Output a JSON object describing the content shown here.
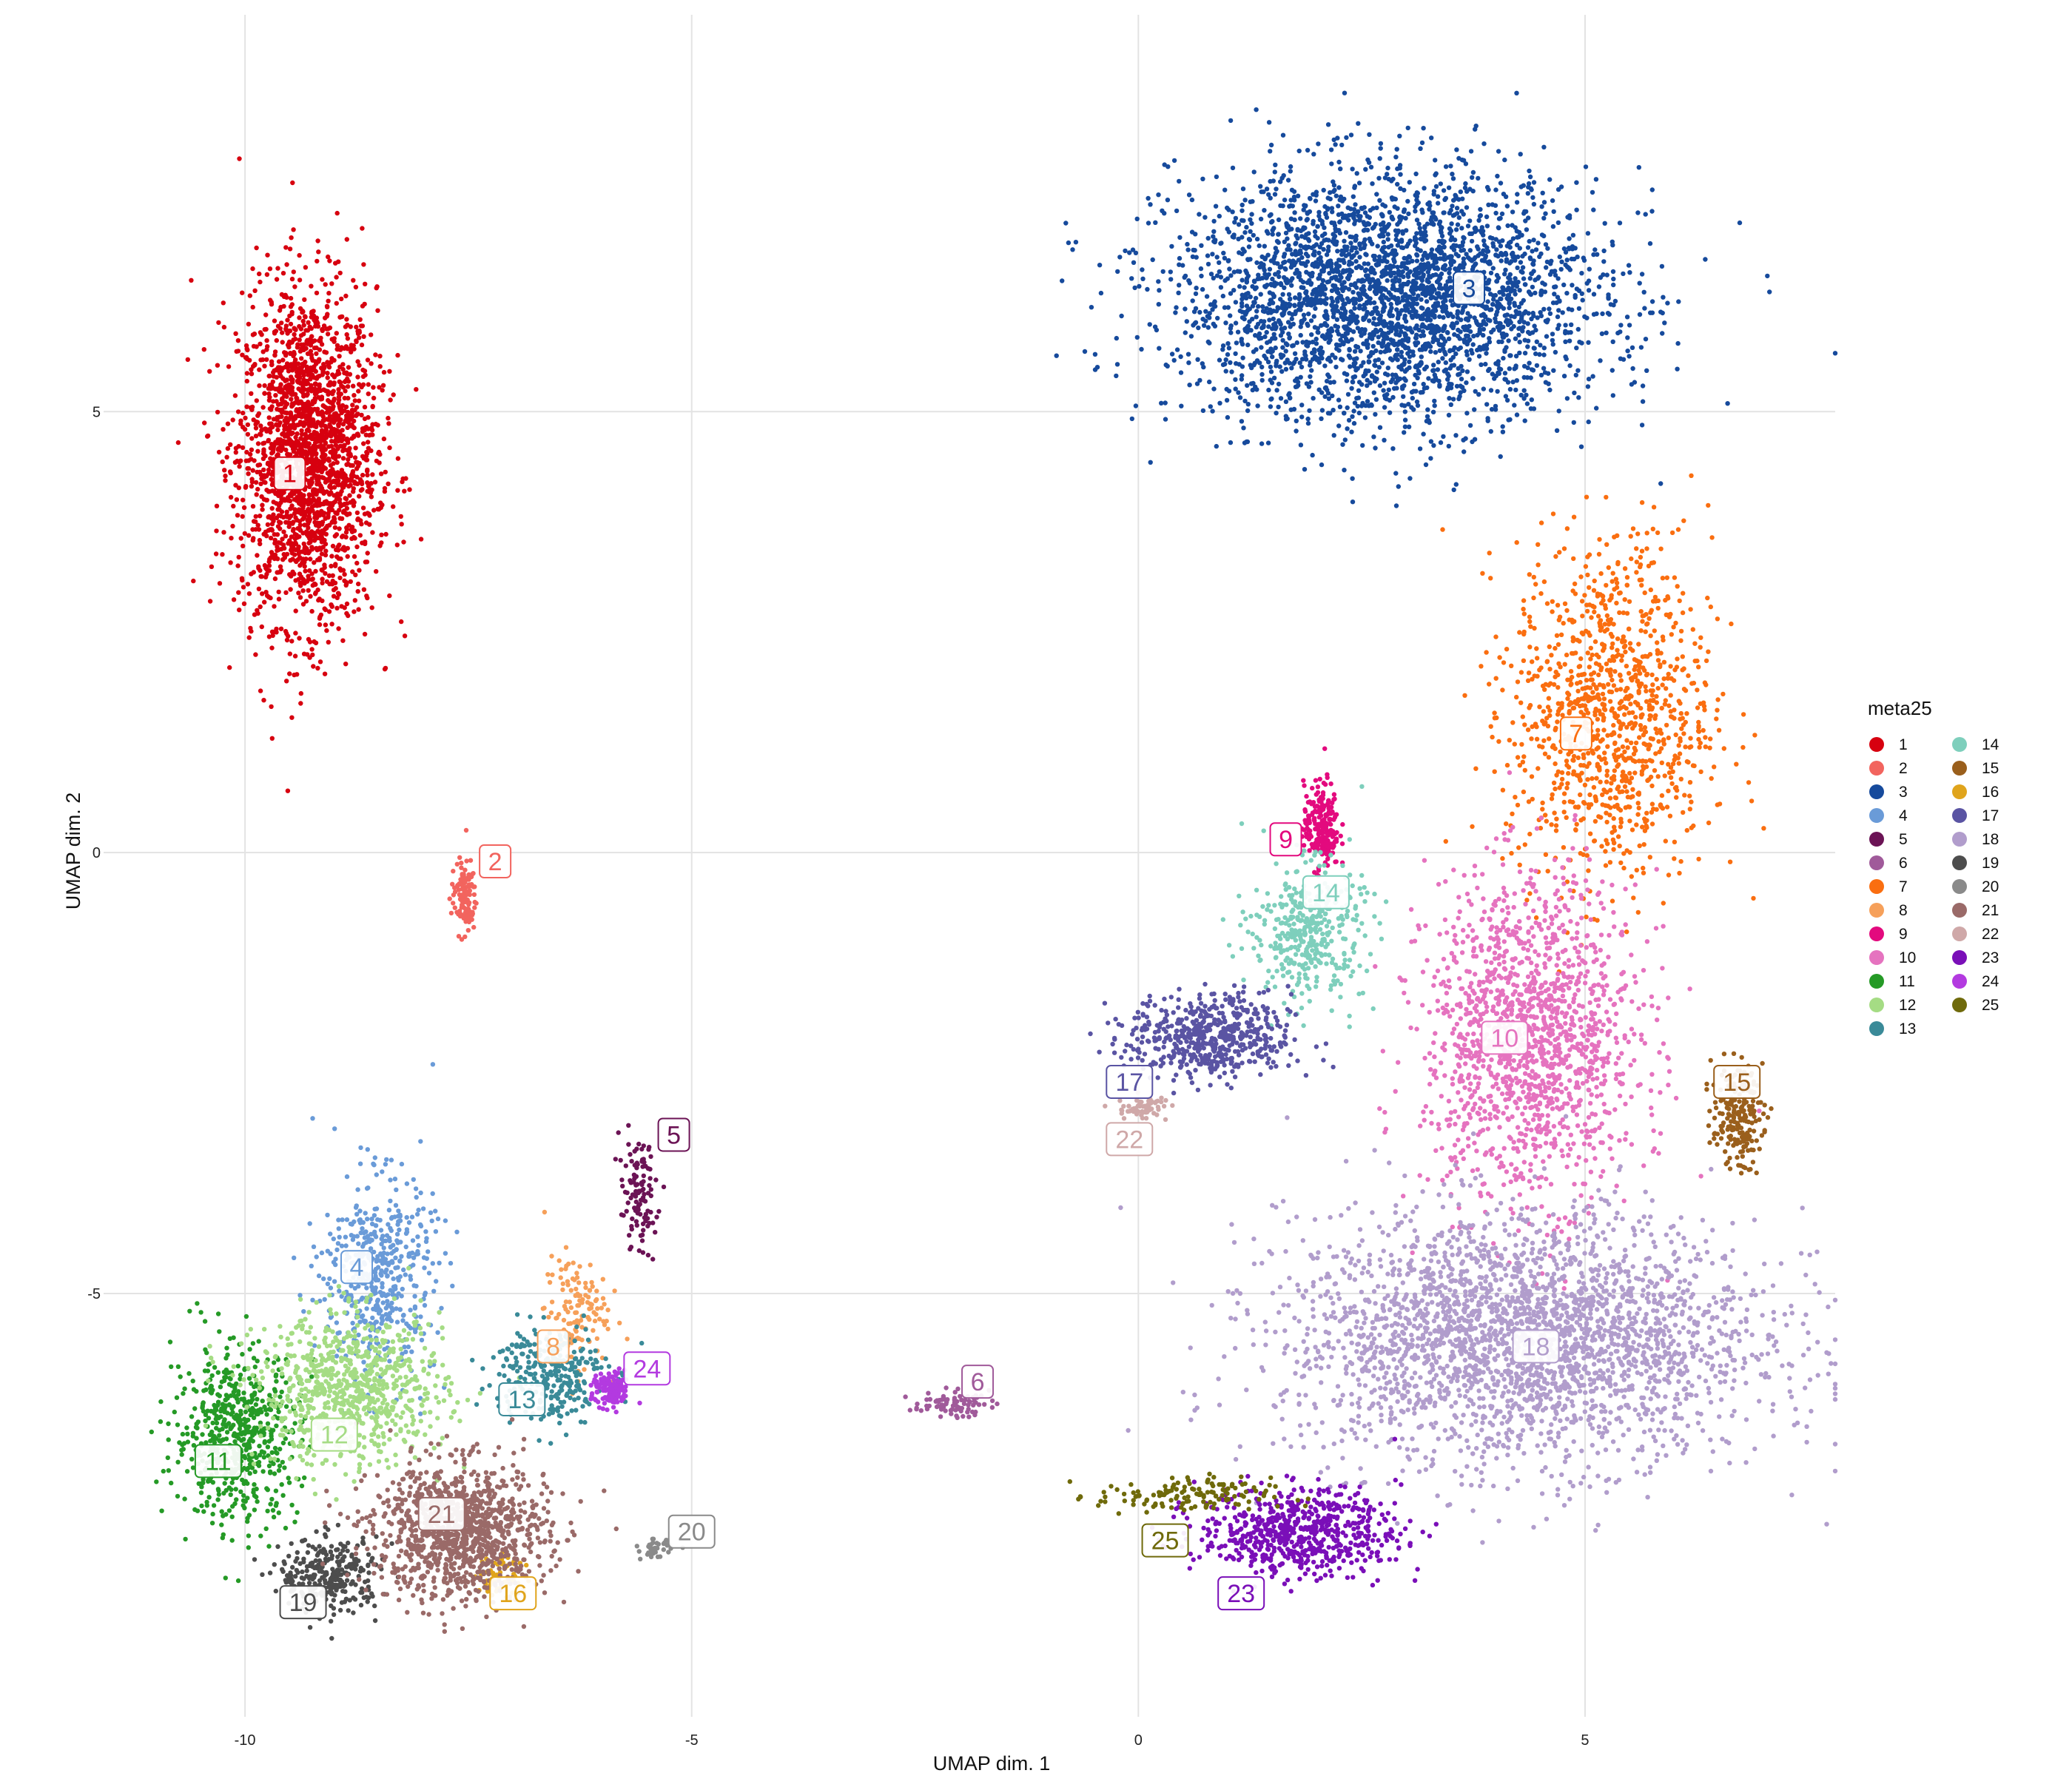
{
  "chart_data": {
    "type": "scatter",
    "xlabel": "UMAP dim. 1",
    "ylabel": "UMAP dim. 2",
    "xlim": [
      -11.5,
      7.8
    ],
    "ylim": [
      -9.8,
      9.5
    ],
    "xticks": [
      -10,
      -5,
      0,
      5
    ],
    "yticks": [
      -5,
      0,
      5
    ],
    "grid": true,
    "legend": {
      "title": "meta25",
      "position": "right"
    },
    "clusters": [
      {
        "id": "1",
        "label": "1",
        "color": "#D7000F",
        "label_x": -9.5,
        "label_y": 4.3,
        "center": [
          -9.3,
          4.5
        ],
        "spread": [
          0.55,
          1.35
        ],
        "n": 2200
      },
      {
        "id": "2",
        "label": "2",
        "color": "#F2645E",
        "label_x": -7.2,
        "label_y": -0.1,
        "center": [
          -7.55,
          -0.5
        ],
        "spread": [
          0.1,
          0.3
        ],
        "n": 120
      },
      {
        "id": "3",
        "label": "3",
        "color": "#164A9C",
        "label_x": 3.7,
        "label_y": 6.4,
        "center": [
          2.8,
          6.3
        ],
        "spread": [
          1.7,
          1.0
        ],
        "n": 3200
      },
      {
        "id": "4",
        "label": "4",
        "color": "#6A9BD8",
        "label_x": -8.75,
        "label_y": -4.7,
        "center": [
          -8.5,
          -4.8
        ],
        "spread": [
          0.45,
          0.8
        ],
        "n": 500
      },
      {
        "id": "5",
        "label": "5",
        "color": "#6B1355",
        "label_x": -5.2,
        "label_y": -3.2,
        "center": [
          -5.6,
          -3.9
        ],
        "spread": [
          0.15,
          0.45
        ],
        "n": 110
      },
      {
        "id": "6",
        "label": "6",
        "color": "#A05A9A",
        "label_x": -1.8,
        "label_y": -6.0,
        "center": [
          -2.1,
          -6.25
        ],
        "spread": [
          0.3,
          0.1
        ],
        "n": 80
      },
      {
        "id": "7",
        "label": "7",
        "color": "#FA6E10",
        "label_x": 4.9,
        "label_y": 1.35,
        "center": [
          5.3,
          1.6
        ],
        "spread": [
          0.8,
          1.4
        ],
        "n": 1100
      },
      {
        "id": "8",
        "label": "8",
        "color": "#F6A05A",
        "label_x": -6.55,
        "label_y": -5.6,
        "center": [
          -6.3,
          -5.2
        ],
        "spread": [
          0.25,
          0.45
        ],
        "n": 130
      },
      {
        "id": "9",
        "label": "9",
        "color": "#E30A7E",
        "label_x": 1.65,
        "label_y": 0.15,
        "center": [
          2.05,
          0.3
        ],
        "spread": [
          0.14,
          0.35
        ],
        "n": 220
      },
      {
        "id": "10",
        "label": "10",
        "color": "#E573BF",
        "label_x": 4.1,
        "label_y": -2.1,
        "center": [
          4.4,
          -2.1
        ],
        "spread": [
          0.85,
          1.3
        ],
        "n": 1500
      },
      {
        "id": "11",
        "label": "11",
        "color": "#259A26",
        "label_x": -10.3,
        "label_y": -6.9,
        "center": [
          -10.1,
          -6.6
        ],
        "spread": [
          0.5,
          0.7
        ],
        "n": 600
      },
      {
        "id": "12",
        "label": "12",
        "color": "#A5DC84",
        "label_x": -9.0,
        "label_y": -6.6,
        "center": [
          -8.8,
          -6.1
        ],
        "spread": [
          0.75,
          0.6
        ],
        "n": 800
      },
      {
        "id": "13",
        "label": "13",
        "color": "#3A8A98",
        "label_x": -6.9,
        "label_y": -6.2,
        "center": [
          -6.6,
          -5.9
        ],
        "spread": [
          0.45,
          0.4
        ],
        "n": 300
      },
      {
        "id": "14",
        "label": "14",
        "color": "#7ECFBC",
        "label_x": 2.1,
        "label_y": -0.45,
        "center": [
          1.9,
          -0.9
        ],
        "spread": [
          0.45,
          0.55
        ],
        "n": 400
      },
      {
        "id": "15",
        "label": "15",
        "color": "#9A5F1C",
        "label_x": 6.7,
        "label_y": -2.6,
        "center": [
          6.7,
          -3.0
        ],
        "spread": [
          0.2,
          0.4
        ],
        "n": 200
      },
      {
        "id": "16",
        "label": "16",
        "color": "#E0A41C",
        "label_x": -7.0,
        "label_y": -8.4,
        "center": [
          -7.1,
          -8.2
        ],
        "spread": [
          0.2,
          0.2
        ],
        "n": 60
      },
      {
        "id": "17",
        "label": "17",
        "color": "#5A54A3",
        "label_x": -0.1,
        "label_y": -2.6,
        "center": [
          0.8,
          -2.1
        ],
        "spread": [
          0.65,
          0.35
        ],
        "n": 550
      },
      {
        "id": "18",
        "label": "18",
        "color": "#B19DCC",
        "label_x": 4.45,
        "label_y": -5.6,
        "center": [
          4.3,
          -5.5
        ],
        "spread": [
          1.9,
          1.0
        ],
        "n": 2800
      },
      {
        "id": "19",
        "label": "19",
        "color": "#4D4D4D",
        "label_x": -9.35,
        "label_y": -8.5,
        "center": [
          -9.05,
          -8.2
        ],
        "spread": [
          0.4,
          0.3
        ],
        "n": 300
      },
      {
        "id": "20",
        "label": "20",
        "color": "#8A8A8A",
        "label_x": -5.0,
        "label_y": -7.7,
        "center": [
          -5.4,
          -7.9
        ],
        "spread": [
          0.12,
          0.08
        ],
        "n": 40
      },
      {
        "id": "21",
        "label": "21",
        "color": "#9A6A68",
        "label_x": -7.8,
        "label_y": -7.5,
        "center": [
          -7.6,
          -7.7
        ],
        "spread": [
          0.7,
          0.55
        ],
        "n": 1100
      },
      {
        "id": "22",
        "label": "22",
        "color": "#CFA8A8",
        "label_x": -0.1,
        "label_y": -3.25,
        "center": [
          0.05,
          -2.9
        ],
        "spread": [
          0.2,
          0.1
        ],
        "n": 60
      },
      {
        "id": "23",
        "label": "23",
        "color": "#7A0FB8",
        "label_x": 1.15,
        "label_y": -8.4,
        "center": [
          1.8,
          -7.7
        ],
        "spread": [
          0.8,
          0.35
        ],
        "n": 650
      },
      {
        "id": "24",
        "label": "24",
        "color": "#B33AE0",
        "label_x": -5.5,
        "label_y": -5.85,
        "center": [
          -5.9,
          -6.1
        ],
        "spread": [
          0.15,
          0.15
        ],
        "n": 130
      },
      {
        "id": "25",
        "label": "25",
        "color": "#6F6A0B",
        "label_x": 0.3,
        "label_y": -7.8,
        "center": [
          0.5,
          -7.3
        ],
        "spread": [
          0.7,
          0.15
        ],
        "n": 140
      }
    ]
  }
}
